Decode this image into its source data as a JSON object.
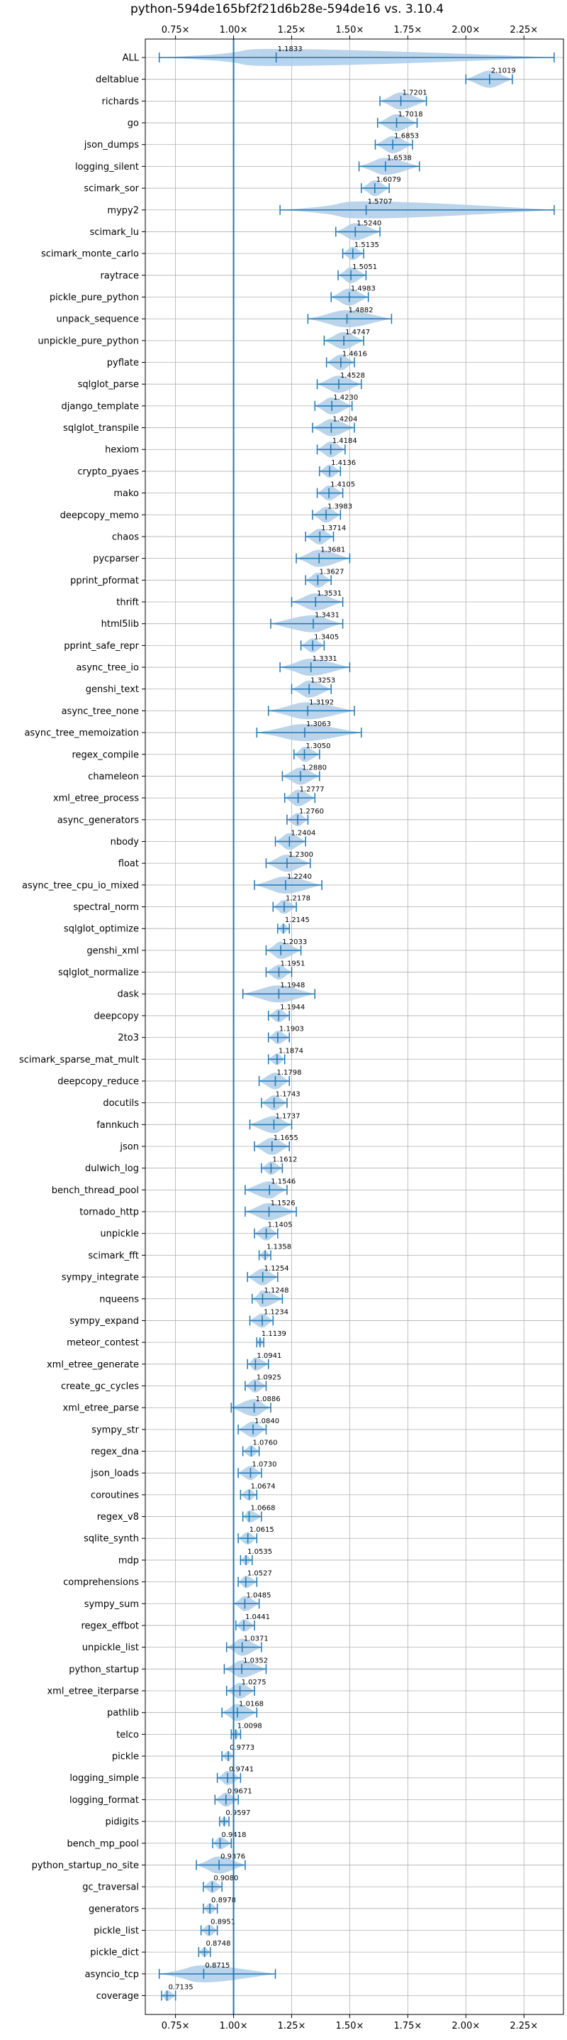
{
  "chart_data": {
    "type": "violin",
    "title": "python-594de165bf2f21d6b28e-594de16 vs. 3.10.4",
    "xlim": [
      0.62,
      2.42
    ],
    "x_ticks": [
      0.75,
      1.0,
      1.25,
      1.5,
      1.75,
      2.0,
      2.25
    ],
    "x_tick_labels": [
      "0.75×",
      "1.00×",
      "1.25×",
      "1.50×",
      "1.75×",
      "2.00×",
      "2.25×"
    ],
    "reference_line": 1.0,
    "grid": true,
    "color": "#1f77b4",
    "fill_color": "#aecde8",
    "rows": [
      {
        "name": "ALL",
        "value": 1.1833,
        "label": "1.1833",
        "min": 0.68,
        "max": 2.38
      },
      {
        "name": "deltablue",
        "value": 2.1019,
        "label": "2.1019",
        "min": 2.0,
        "max": 2.2
      },
      {
        "name": "richards",
        "value": 1.7201,
        "label": "1.7201",
        "min": 1.63,
        "max": 1.83
      },
      {
        "name": "go",
        "value": 1.7018,
        "label": "1.7018",
        "min": 1.62,
        "max": 1.79
      },
      {
        "name": "json_dumps",
        "value": 1.6853,
        "label": "1.6853",
        "min": 1.61,
        "max": 1.77
      },
      {
        "name": "logging_silent",
        "value": 1.6538,
        "label": "1.6538",
        "min": 1.54,
        "max": 1.8
      },
      {
        "name": "scimark_sor",
        "value": 1.6079,
        "label": "1.6079",
        "min": 1.55,
        "max": 1.67
      },
      {
        "name": "mypy2",
        "value": 1.5707,
        "label": "1.5707",
        "min": 1.2,
        "max": 2.38
      },
      {
        "name": "scimark_lu",
        "value": 1.524,
        "label": "1.5240",
        "min": 1.44,
        "max": 1.63
      },
      {
        "name": "scimark_monte_carlo",
        "value": 1.5135,
        "label": "1.5135",
        "min": 1.47,
        "max": 1.56
      },
      {
        "name": "raytrace",
        "value": 1.5051,
        "label": "1.5051",
        "min": 1.45,
        "max": 1.57
      },
      {
        "name": "pickle_pure_python",
        "value": 1.4983,
        "label": "1.4983",
        "min": 1.42,
        "max": 1.58
      },
      {
        "name": "unpack_sequence",
        "value": 1.4882,
        "label": "1.4882",
        "min": 1.32,
        "max": 1.68
      },
      {
        "name": "unpickle_pure_python",
        "value": 1.4747,
        "label": "1.4747",
        "min": 1.39,
        "max": 1.56
      },
      {
        "name": "pyflate",
        "value": 1.4616,
        "label": "1.4616",
        "min": 1.4,
        "max": 1.52
      },
      {
        "name": "sqlglot_parse",
        "value": 1.4528,
        "label": "1.4528",
        "min": 1.36,
        "max": 1.55
      },
      {
        "name": "django_template",
        "value": 1.423,
        "label": "1.4230",
        "min": 1.35,
        "max": 1.51
      },
      {
        "name": "sqlglot_transpile",
        "value": 1.4204,
        "label": "1.4204",
        "min": 1.34,
        "max": 1.52
      },
      {
        "name": "hexiom",
        "value": 1.4184,
        "label": "1.4184",
        "min": 1.36,
        "max": 1.48
      },
      {
        "name": "crypto_pyaes",
        "value": 1.4136,
        "label": "1.4136",
        "min": 1.37,
        "max": 1.46
      },
      {
        "name": "mako",
        "value": 1.4105,
        "label": "1.4105",
        "min": 1.36,
        "max": 1.47
      },
      {
        "name": "deepcopy_memo",
        "value": 1.3983,
        "label": "1.3983",
        "min": 1.34,
        "max": 1.46
      },
      {
        "name": "chaos",
        "value": 1.3714,
        "label": "1.3714",
        "min": 1.31,
        "max": 1.43
      },
      {
        "name": "pycparser",
        "value": 1.3681,
        "label": "1.3681",
        "min": 1.27,
        "max": 1.5
      },
      {
        "name": "pprint_pformat",
        "value": 1.3627,
        "label": "1.3627",
        "min": 1.31,
        "max": 1.42
      },
      {
        "name": "thrift",
        "value": 1.3531,
        "label": "1.3531",
        "min": 1.25,
        "max": 1.47
      },
      {
        "name": "html5lib",
        "value": 1.3431,
        "label": "1.3431",
        "min": 1.16,
        "max": 1.47
      },
      {
        "name": "pprint_safe_repr",
        "value": 1.3405,
        "label": "1.3405",
        "min": 1.29,
        "max": 1.39
      },
      {
        "name": "async_tree_io",
        "value": 1.3331,
        "label": "1.3331",
        "min": 1.2,
        "max": 1.5
      },
      {
        "name": "genshi_text",
        "value": 1.3253,
        "label": "1.3253",
        "min": 1.25,
        "max": 1.42
      },
      {
        "name": "async_tree_none",
        "value": 1.3192,
        "label": "1.3192",
        "min": 1.15,
        "max": 1.52
      },
      {
        "name": "async_tree_memoization",
        "value": 1.3063,
        "label": "1.3063",
        "min": 1.1,
        "max": 1.55
      },
      {
        "name": "regex_compile",
        "value": 1.305,
        "label": "1.3050",
        "min": 1.26,
        "max": 1.37
      },
      {
        "name": "chameleon",
        "value": 1.288,
        "label": "1.2880",
        "min": 1.21,
        "max": 1.37
      },
      {
        "name": "xml_etree_process",
        "value": 1.2777,
        "label": "1.2777",
        "min": 1.22,
        "max": 1.35
      },
      {
        "name": "async_generators",
        "value": 1.276,
        "label": "1.2760",
        "min": 1.23,
        "max": 1.32
      },
      {
        "name": "nbody",
        "value": 1.2404,
        "label": "1.2404",
        "min": 1.18,
        "max": 1.31
      },
      {
        "name": "float",
        "value": 1.23,
        "label": "1.2300",
        "min": 1.14,
        "max": 1.33
      },
      {
        "name": "async_tree_cpu_io_mixed",
        "value": 1.224,
        "label": "1.2240",
        "min": 1.09,
        "max": 1.38
      },
      {
        "name": "spectral_norm",
        "value": 1.2178,
        "label": "1.2178",
        "min": 1.17,
        "max": 1.27
      },
      {
        "name": "sqlglot_optimize",
        "value": 1.2145,
        "label": "1.2145",
        "min": 1.19,
        "max": 1.24
      },
      {
        "name": "genshi_xml",
        "value": 1.2033,
        "label": "1.2033",
        "min": 1.14,
        "max": 1.29
      },
      {
        "name": "sqlglot_normalize",
        "value": 1.1951,
        "label": "1.1951",
        "min": 1.14,
        "max": 1.25
      },
      {
        "name": "dask",
        "value": 1.1948,
        "label": "1.1948",
        "min": 1.04,
        "max": 1.35
      },
      {
        "name": "deepcopy",
        "value": 1.1944,
        "label": "1.1944",
        "min": 1.15,
        "max": 1.24
      },
      {
        "name": "2to3",
        "value": 1.1903,
        "label": "1.1903",
        "min": 1.15,
        "max": 1.24
      },
      {
        "name": "scimark_sparse_mat_mult",
        "value": 1.1874,
        "label": "1.1874",
        "min": 1.15,
        "max": 1.22
      },
      {
        "name": "deepcopy_reduce",
        "value": 1.1798,
        "label": "1.1798",
        "min": 1.11,
        "max": 1.24
      },
      {
        "name": "docutils",
        "value": 1.1743,
        "label": "1.1743",
        "min": 1.12,
        "max": 1.23
      },
      {
        "name": "fannkuch",
        "value": 1.1737,
        "label": "1.1737",
        "min": 1.07,
        "max": 1.25
      },
      {
        "name": "json",
        "value": 1.1655,
        "label": "1.1655",
        "min": 1.09,
        "max": 1.24
      },
      {
        "name": "dulwich_log",
        "value": 1.1612,
        "label": "1.1612",
        "min": 1.12,
        "max": 1.21
      },
      {
        "name": "bench_thread_pool",
        "value": 1.1546,
        "label": "1.1546",
        "min": 1.05,
        "max": 1.23
      },
      {
        "name": "tornado_http",
        "value": 1.1526,
        "label": "1.1526",
        "min": 1.05,
        "max": 1.27
      },
      {
        "name": "unpickle",
        "value": 1.1405,
        "label": "1.1405",
        "min": 1.09,
        "max": 1.19
      },
      {
        "name": "scimark_fft",
        "value": 1.1358,
        "label": "1.1358",
        "min": 1.11,
        "max": 1.16
      },
      {
        "name": "sympy_integrate",
        "value": 1.1254,
        "label": "1.1254",
        "min": 1.06,
        "max": 1.19
      },
      {
        "name": "nqueens",
        "value": 1.1248,
        "label": "1.1248",
        "min": 1.08,
        "max": 1.21
      },
      {
        "name": "sympy_expand",
        "value": 1.1234,
        "label": "1.1234",
        "min": 1.07,
        "max": 1.17
      },
      {
        "name": "meteor_contest",
        "value": 1.1139,
        "label": "1.1139",
        "min": 1.1,
        "max": 1.13
      },
      {
        "name": "xml_etree_generate",
        "value": 1.0941,
        "label": "1.0941",
        "min": 1.06,
        "max": 1.15
      },
      {
        "name": "create_gc_cycles",
        "value": 1.0925,
        "label": "1.0925",
        "min": 1.05,
        "max": 1.14
      },
      {
        "name": "xml_etree_parse",
        "value": 1.0886,
        "label": "1.0886",
        "min": 0.99,
        "max": 1.16
      },
      {
        "name": "sympy_str",
        "value": 1.084,
        "label": "1.0840",
        "min": 1.02,
        "max": 1.14
      },
      {
        "name": "regex_dna",
        "value": 1.076,
        "label": "1.0760",
        "min": 1.04,
        "max": 1.11
      },
      {
        "name": "json_loads",
        "value": 1.073,
        "label": "1.0730",
        "min": 1.02,
        "max": 1.12
      },
      {
        "name": "coroutines",
        "value": 1.0674,
        "label": "1.0674",
        "min": 1.03,
        "max": 1.1
      },
      {
        "name": "regex_v8",
        "value": 1.0668,
        "label": "1.0668",
        "min": 1.04,
        "max": 1.12
      },
      {
        "name": "sqlite_synth",
        "value": 1.0615,
        "label": "1.0615",
        "min": 1.02,
        "max": 1.1
      },
      {
        "name": "mdp",
        "value": 1.0535,
        "label": "1.0535",
        "min": 1.03,
        "max": 1.08
      },
      {
        "name": "comprehensions",
        "value": 1.0527,
        "label": "1.0527",
        "min": 1.02,
        "max": 1.1
      },
      {
        "name": "sympy_sum",
        "value": 1.0485,
        "label": "1.0485",
        "min": 1.0,
        "max": 1.11
      },
      {
        "name": "regex_effbot",
        "value": 1.0441,
        "label": "1.0441",
        "min": 1.01,
        "max": 1.09
      },
      {
        "name": "unpickle_list",
        "value": 1.0371,
        "label": "1.0371",
        "min": 0.97,
        "max": 1.12
      },
      {
        "name": "python_startup",
        "value": 1.0352,
        "label": "1.0352",
        "min": 0.96,
        "max": 1.14
      },
      {
        "name": "xml_etree_iterparse",
        "value": 1.0275,
        "label": "1.0275",
        "min": 0.97,
        "max": 1.09
      },
      {
        "name": "pathlib",
        "value": 1.0168,
        "label": "1.0168",
        "min": 0.95,
        "max": 1.1
      },
      {
        "name": "telco",
        "value": 1.0098,
        "label": "1.0098",
        "min": 0.99,
        "max": 1.03
      },
      {
        "name": "pickle",
        "value": 0.9773,
        "label": "0.9773",
        "min": 0.95,
        "max": 1.0
      },
      {
        "name": "logging_simple",
        "value": 0.9741,
        "label": "0.9741",
        "min": 0.93,
        "max": 1.03
      },
      {
        "name": "logging_format",
        "value": 0.9671,
        "label": "0.9671",
        "min": 0.92,
        "max": 1.02
      },
      {
        "name": "pidigits",
        "value": 0.9597,
        "label": "0.9597",
        "min": 0.94,
        "max": 0.98
      },
      {
        "name": "bench_mp_pool",
        "value": 0.9418,
        "label": "0.9418",
        "min": 0.91,
        "max": 0.99
      },
      {
        "name": "python_startup_no_site",
        "value": 0.9376,
        "label": "0.9376",
        "min": 0.84,
        "max": 1.05
      },
      {
        "name": "gc_traversal",
        "value": 0.908,
        "label": "0.9080",
        "min": 0.87,
        "max": 0.95
      },
      {
        "name": "generators",
        "value": 0.8978,
        "label": "0.8978",
        "min": 0.87,
        "max": 0.93
      },
      {
        "name": "pickle_list",
        "value": 0.8951,
        "label": "0.8951",
        "min": 0.86,
        "max": 0.93
      },
      {
        "name": "pickle_dict",
        "value": 0.8748,
        "label": "0.8748",
        "min": 0.85,
        "max": 0.9
      },
      {
        "name": "asyncio_tcp",
        "value": 0.8715,
        "label": "0.8715",
        "min": 0.68,
        "max": 1.18
      },
      {
        "name": "coverage",
        "value": 0.7135,
        "label": "0.7135",
        "min": 0.69,
        "max": 0.75
      }
    ]
  }
}
